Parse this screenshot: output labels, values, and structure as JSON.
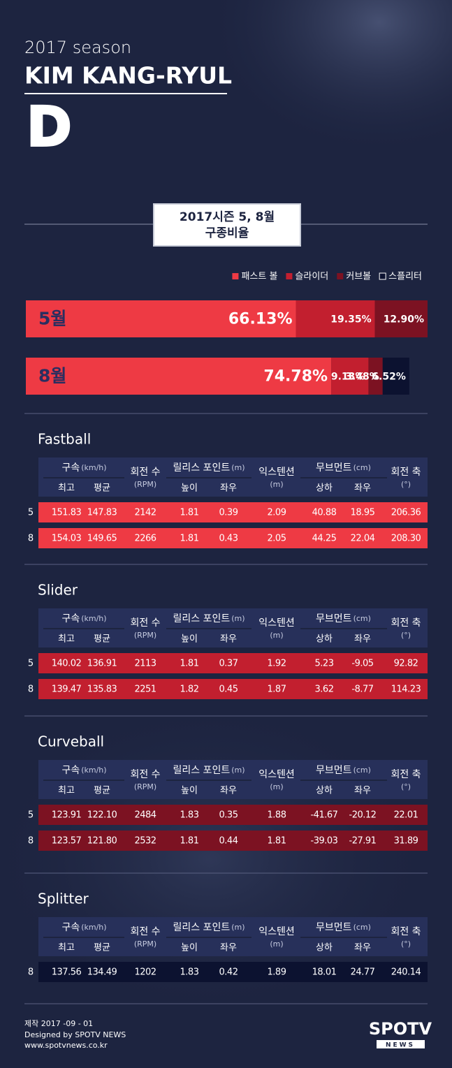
{
  "header": {
    "season": "2017 season",
    "player": "KIM KANG-RYUL",
    "logo": "D"
  },
  "chart_data": {
    "type": "bar",
    "orientation": "horizontal",
    "stacked": true,
    "title": "2017시즌 5, 8월",
    "subtitle": "구종비율",
    "legend": "top-right",
    "categories": [
      "5월",
      "8월"
    ],
    "series": [
      {
        "name": "패스트 볼",
        "color": "#ee3a44",
        "values": [
          66.13,
          74.78
        ],
        "value_labels": [
          "66.13%",
          "74.78%"
        ]
      },
      {
        "name": "슬라이더",
        "color": "#c21f2f",
        "values": [
          19.35,
          9.13
        ],
        "value_labels": [
          "19.35%",
          "9.13%"
        ]
      },
      {
        "name": "커브볼",
        "color": "#7c1222",
        "values": [
          12.9,
          3.48
        ],
        "value_labels": [
          "12.90%",
          "3.48%"
        ]
      },
      {
        "name": "스플리터",
        "color": "#0c1230",
        "values": [
          null,
          6.52
        ],
        "value_labels": [
          null,
          "6.52%"
        ]
      }
    ]
  },
  "tables": {
    "header": [
      {
        "label": "구속",
        "unit": "(km/h)",
        "sub": [
          "최고",
          "평균"
        ]
      },
      {
        "label": "회전 수",
        "unit": "(RPM)"
      },
      {
        "label": "릴리스 포인트",
        "unit": "(m)",
        "sub": [
          "높이",
          "좌우"
        ]
      },
      {
        "label": "익스텐션",
        "unit": "(m)"
      },
      {
        "label": "무브먼트",
        "unit": "(cm)",
        "sub": [
          "상하",
          "좌우"
        ]
      },
      {
        "label": "회전 축",
        "unit": "(°)"
      }
    ],
    "pitches": [
      {
        "name": "Fastball",
        "color": "#ee3a44",
        "rows": [
          [
            "5",
            "151.83",
            "147.83",
            "2142",
            "1.81",
            "0.39",
            "2.09",
            "40.88",
            "18.95",
            "206.36"
          ],
          [
            "8",
            "154.03",
            "149.65",
            "2266",
            "1.81",
            "0.43",
            "2.05",
            "44.25",
            "22.04",
            "208.30"
          ]
        ]
      },
      {
        "name": "Slider",
        "color": "#c21f2f",
        "rows": [
          [
            "5",
            "140.02",
            "136.91",
            "2113",
            "1.81",
            "0.37",
            "1.92",
            "5.23",
            "-9.05",
            "92.82"
          ],
          [
            "8",
            "139.47",
            "135.83",
            "2251",
            "1.82",
            "0.45",
            "1.87",
            "3.62",
            "-8.77",
            "114.23"
          ]
        ]
      },
      {
        "name": "Curveball",
        "color": "#7c1222",
        "rows": [
          [
            "5",
            "123.91",
            "122.10",
            "2484",
            "1.83",
            "0.35",
            "1.88",
            "-41.67",
            "-20.12",
            "22.01"
          ],
          [
            "8",
            "123.57",
            "121.80",
            "2532",
            "1.81",
            "0.44",
            "1.81",
            "-39.03",
            "-27.91",
            "31.89"
          ]
        ]
      },
      {
        "name": "Splitter",
        "color": "#0c1230",
        "rows": [
          [
            "8",
            "137.56",
            "134.49",
            "1202",
            "1.83",
            "0.42",
            "1.89",
            "18.01",
            "24.77",
            "240.14"
          ]
        ]
      }
    ]
  },
  "footer": {
    "date": "제작 2017 -09 - 01",
    "credit": "Designed by SPOTV NEWS",
    "url": "www.spotvnews.co.kr",
    "logo": "SPOTV",
    "logo_sub": "NEWS"
  }
}
